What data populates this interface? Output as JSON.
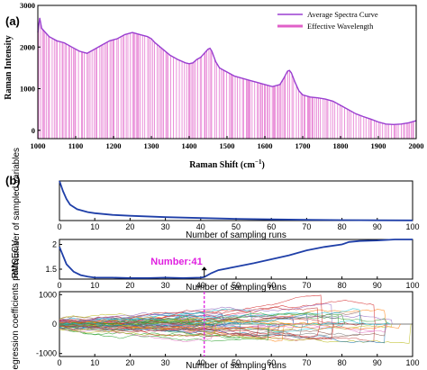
{
  "chart_data": [
    {
      "panel_label": "(a)",
      "type": "line",
      "xlabel": "Raman Shift (cm",
      "xlabel_sup": "−1",
      "xlabel_end": ")",
      "ylabel": "Raman Intensity",
      "xlim": [
        1000,
        2000
      ],
      "ylim": [
        -200,
        3000
      ],
      "xticks": [
        "1000",
        "1100",
        "1200",
        "1300",
        "1400",
        "1500",
        "1600",
        "1700",
        "1800",
        "1900",
        "2000"
      ],
      "yticks": [
        "0",
        "1000",
        "2000",
        "3000"
      ],
      "legend": [
        "Average Spectra Curve",
        "Effective Wavelength"
      ],
      "legend_position": "top-right",
      "colors": {
        "curve": "#9a3fd0",
        "wavelength": "#e060c8"
      },
      "series": [
        {
          "name": "Average Spectra Curve",
          "x": [
            1000,
            1005,
            1010,
            1020,
            1030,
            1050,
            1070,
            1090,
            1110,
            1130,
            1150,
            1170,
            1190,
            1210,
            1230,
            1250,
            1270,
            1290,
            1300,
            1310,
            1330,
            1350,
            1370,
            1390,
            1400,
            1410,
            1420,
            1430,
            1440,
            1450,
            1455,
            1460,
            1470,
            1480,
            1490,
            1500,
            1520,
            1540,
            1560,
            1580,
            1600,
            1620,
            1640,
            1650,
            1660,
            1665,
            1670,
            1680,
            1690,
            1700,
            1720,
            1740,
            1760,
            1780,
            1800,
            1820,
            1840,
            1860,
            1880,
            1900,
            1920,
            1940,
            1960,
            1980,
            2000
          ],
          "y": [
            2350,
            2700,
            2450,
            2350,
            2250,
            2150,
            2100,
            2000,
            1900,
            1850,
            1950,
            2050,
            2150,
            2200,
            2300,
            2350,
            2300,
            2250,
            2200,
            2100,
            1950,
            1800,
            1700,
            1620,
            1600,
            1620,
            1700,
            1750,
            1850,
            1950,
            1970,
            1900,
            1650,
            1500,
            1450,
            1400,
            1300,
            1250,
            1200,
            1150,
            1100,
            1050,
            1100,
            1250,
            1420,
            1440,
            1380,
            1150,
            950,
            850,
            800,
            780,
            750,
            700,
            600,
            500,
            400,
            330,
            270,
            200,
            150,
            140,
            150,
            180,
            230
          ]
        }
      ]
    },
    {
      "panel_label": "(b)",
      "type": "line",
      "xlabel": "Number of sampling runs",
      "ylabel": "Number of sampled variables",
      "xlim": [
        0,
        100
      ],
      "ylim": [
        0,
        700
      ],
      "xticks": [
        "0",
        "10",
        "20",
        "30",
        "40",
        "50",
        "60",
        "70",
        "80",
        "90",
        "100"
      ],
      "color": "#1f3fa8",
      "series": [
        {
          "x": [
            0,
            1,
            2,
            3,
            5,
            8,
            10,
            15,
            20,
            30,
            40,
            50,
            60,
            70,
            80,
            90,
            100
          ],
          "y": [
            700,
            520,
            380,
            280,
            200,
            150,
            130,
            100,
            85,
            60,
            45,
            30,
            20,
            12,
            8,
            5,
            3
          ]
        }
      ]
    },
    {
      "type": "line",
      "xlabel": "Number of sampling runs",
      "ylabel": "RMSECV",
      "xlim": [
        0,
        100
      ],
      "ylim": [
        1.3,
        2.1
      ],
      "xticks": [
        "0",
        "10",
        "20",
        "30",
        "40",
        "50",
        "60",
        "70",
        "80",
        "90",
        "100"
      ],
      "yticks": [
        "1.5",
        "2"
      ],
      "annotation": "Number:41",
      "annotation_x": 41,
      "color": "#1f3fa8",
      "annotation_color": "#e020e0",
      "series": [
        {
          "x": [
            0,
            2,
            4,
            6,
            8,
            10,
            15,
            20,
            25,
            30,
            35,
            40,
            41,
            43,
            45,
            50,
            55,
            60,
            65,
            70,
            75,
            80,
            82,
            85,
            90,
            95,
            100
          ],
          "y": [
            1.95,
            1.6,
            1.45,
            1.38,
            1.35,
            1.33,
            1.33,
            1.32,
            1.32,
            1.33,
            1.32,
            1.33,
            1.34,
            1.42,
            1.48,
            1.55,
            1.62,
            1.7,
            1.78,
            1.88,
            1.95,
            2.0,
            2.05,
            2.07,
            2.08,
            2.1,
            2.1
          ]
        }
      ]
    },
    {
      "type": "line",
      "xlabel": "Number of sampling runs",
      "ylabel": "Regression coefficients path",
      "xlim": [
        0,
        100
      ],
      "ylim": [
        -1100,
        1100
      ],
      "xticks": [
        "0",
        "10",
        "20",
        "30",
        "40",
        "50",
        "60",
        "70",
        "80",
        "90",
        "100"
      ],
      "yticks": [
        "-1000",
        "0",
        "1000"
      ],
      "marker_x": 41,
      "series_count": 60
    }
  ]
}
